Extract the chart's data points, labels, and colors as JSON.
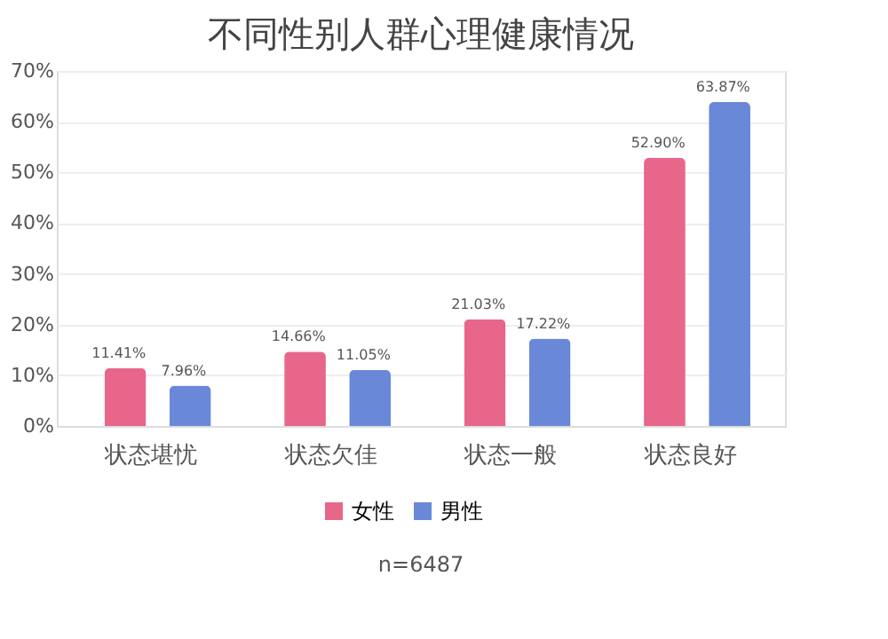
{
  "chart_data": {
    "type": "bar",
    "title": "不同性别人群心理健康情况",
    "categories": [
      "状态堪忧",
      "状态欠佳",
      "状态一般",
      "状态良好"
    ],
    "series": [
      {
        "name": "女性",
        "color": "#e8668a",
        "values": [
          11.41,
          14.66,
          21.03,
          52.9
        ],
        "value_labels": [
          "11.41%",
          "14.66%",
          "21.03%",
          "52.90%"
        ]
      },
      {
        "name": "男性",
        "color": "#6a88d8",
        "values": [
          7.96,
          11.05,
          17.22,
          63.87
        ],
        "value_labels": [
          "7.96%",
          "11.05%",
          "17.22%",
          "63.87%"
        ]
      }
    ],
    "ylim": [
      0,
      70
    ],
    "yticks": [
      {
        "value": 0,
        "label": "0%"
      },
      {
        "value": 10,
        "label": "10%"
      },
      {
        "value": 20,
        "label": "20%"
      },
      {
        "value": 30,
        "label": "30%"
      },
      {
        "value": 40,
        "label": "40%"
      },
      {
        "value": 50,
        "label": "50%"
      },
      {
        "value": 60,
        "label": "60%"
      },
      {
        "value": 70,
        "label": "70%"
      }
    ],
    "grid": "y",
    "legend": "bottom",
    "annotations": [
      "n=6487"
    ]
  }
}
